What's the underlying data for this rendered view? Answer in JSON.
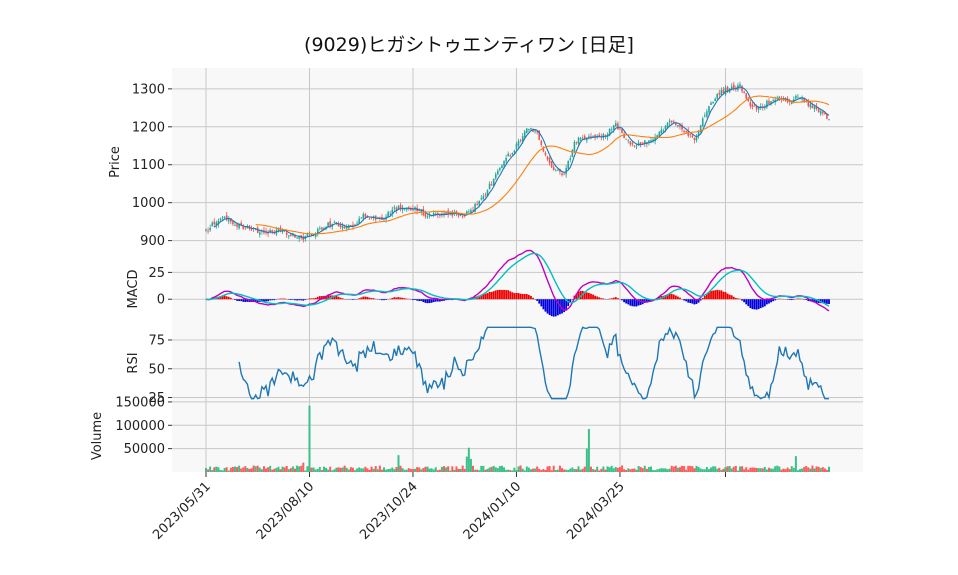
{
  "chart_data": {
    "type": "candlestick",
    "title": "(9029)ヒガシトゥエンティワン [日足]",
    "x_tick_labels": [
      "2023/05/31",
      "2023/08/10",
      "2023/10/24",
      "2024/01/10",
      "2024/03/25"
    ],
    "panels": {
      "price": {
        "ylabel": "Price",
        "yticks": [
          900,
          1000,
          1100,
          1200,
          1300
        ],
        "ylim": [
          870,
          1355
        ],
        "close_anchors": [
          [
            0,
            925
          ],
          [
            8,
            965
          ],
          [
            15,
            940
          ],
          [
            25,
            925
          ],
          [
            33,
            925
          ],
          [
            40,
            920
          ],
          [
            47,
            905
          ],
          [
            55,
            930
          ],
          [
            62,
            950
          ],
          [
            68,
            930
          ],
          [
            76,
            965
          ],
          [
            84,
            955
          ],
          [
            92,
            985
          ],
          [
            100,
            985
          ],
          [
            108,
            965
          ],
          [
            116,
            975
          ],
          [
            124,
            965
          ],
          [
            130,
            990
          ],
          [
            135,
            1025
          ],
          [
            140,
            1070
          ],
          [
            145,
            1115
          ],
          [
            150,
            1150
          ],
          [
            155,
            1200
          ],
          [
            160,
            1185
          ],
          [
            163,
            1140
          ],
          [
            168,
            1085
          ],
          [
            173,
            1070
          ],
          [
            178,
            1160
          ],
          [
            185,
            1175
          ],
          [
            192,
            1175
          ],
          [
            198,
            1205
          ],
          [
            204,
            1160
          ],
          [
            210,
            1150
          ],
          [
            217,
            1175
          ],
          [
            225,
            1215
          ],
          [
            232,
            1185
          ],
          [
            236,
            1165
          ],
          [
            242,
            1245
          ],
          [
            247,
            1290
          ],
          [
            253,
            1300
          ],
          [
            258,
            1310
          ],
          [
            262,
            1265
          ],
          [
            266,
            1245
          ],
          [
            272,
            1265
          ],
          [
            277,
            1280
          ],
          [
            281,
            1260
          ],
          [
            285,
            1285
          ],
          [
            290,
            1265
          ],
          [
            294,
            1250
          ],
          [
            298,
            1240
          ],
          [
            301,
            1215
          ]
        ],
        "series": [
          {
            "name": "SMA short",
            "color": "#1f77b4"
          },
          {
            "name": "SMA long",
            "color": "#ff7f0e"
          }
        ]
      },
      "macd": {
        "ylabel": "MACD",
        "yticks": [
          0,
          25
        ],
        "ylim": [
          -24,
          44
        ],
        "series": [
          {
            "name": "MACD",
            "color": "#c000c0"
          },
          {
            "name": "Signal",
            "color": "#00c0c0"
          }
        ]
      },
      "rsi": {
        "ylabel": "RSI",
        "yticks": [
          25,
          50,
          75
        ],
        "ylim": [
          22,
          88
        ],
        "series": [
          {
            "name": "RSI",
            "color": "#1f77b4"
          }
        ]
      },
      "volume": {
        "ylabel": "Volume",
        "yticks": [
          50000,
          100000,
          150000
        ],
        "ylim": [
          0,
          152000
        ],
        "spikes": [
          [
            50,
            142000
          ],
          [
            47,
            20000
          ],
          [
            127,
            52000
          ],
          [
            126,
            33000
          ],
          [
            128,
            28000
          ],
          [
            185,
            92000
          ],
          [
            184,
            50000
          ],
          [
            93,
            36000
          ],
          [
            285,
            34000
          ]
        ]
      }
    },
    "colors": {
      "up": "#ef5350",
      "down": "#26a69a",
      "vol_up": "#ff5c5c",
      "vol_down": "#3cc08a",
      "macd_pos": "#ee0000",
      "macd_neg": "#0000dd"
    }
  }
}
